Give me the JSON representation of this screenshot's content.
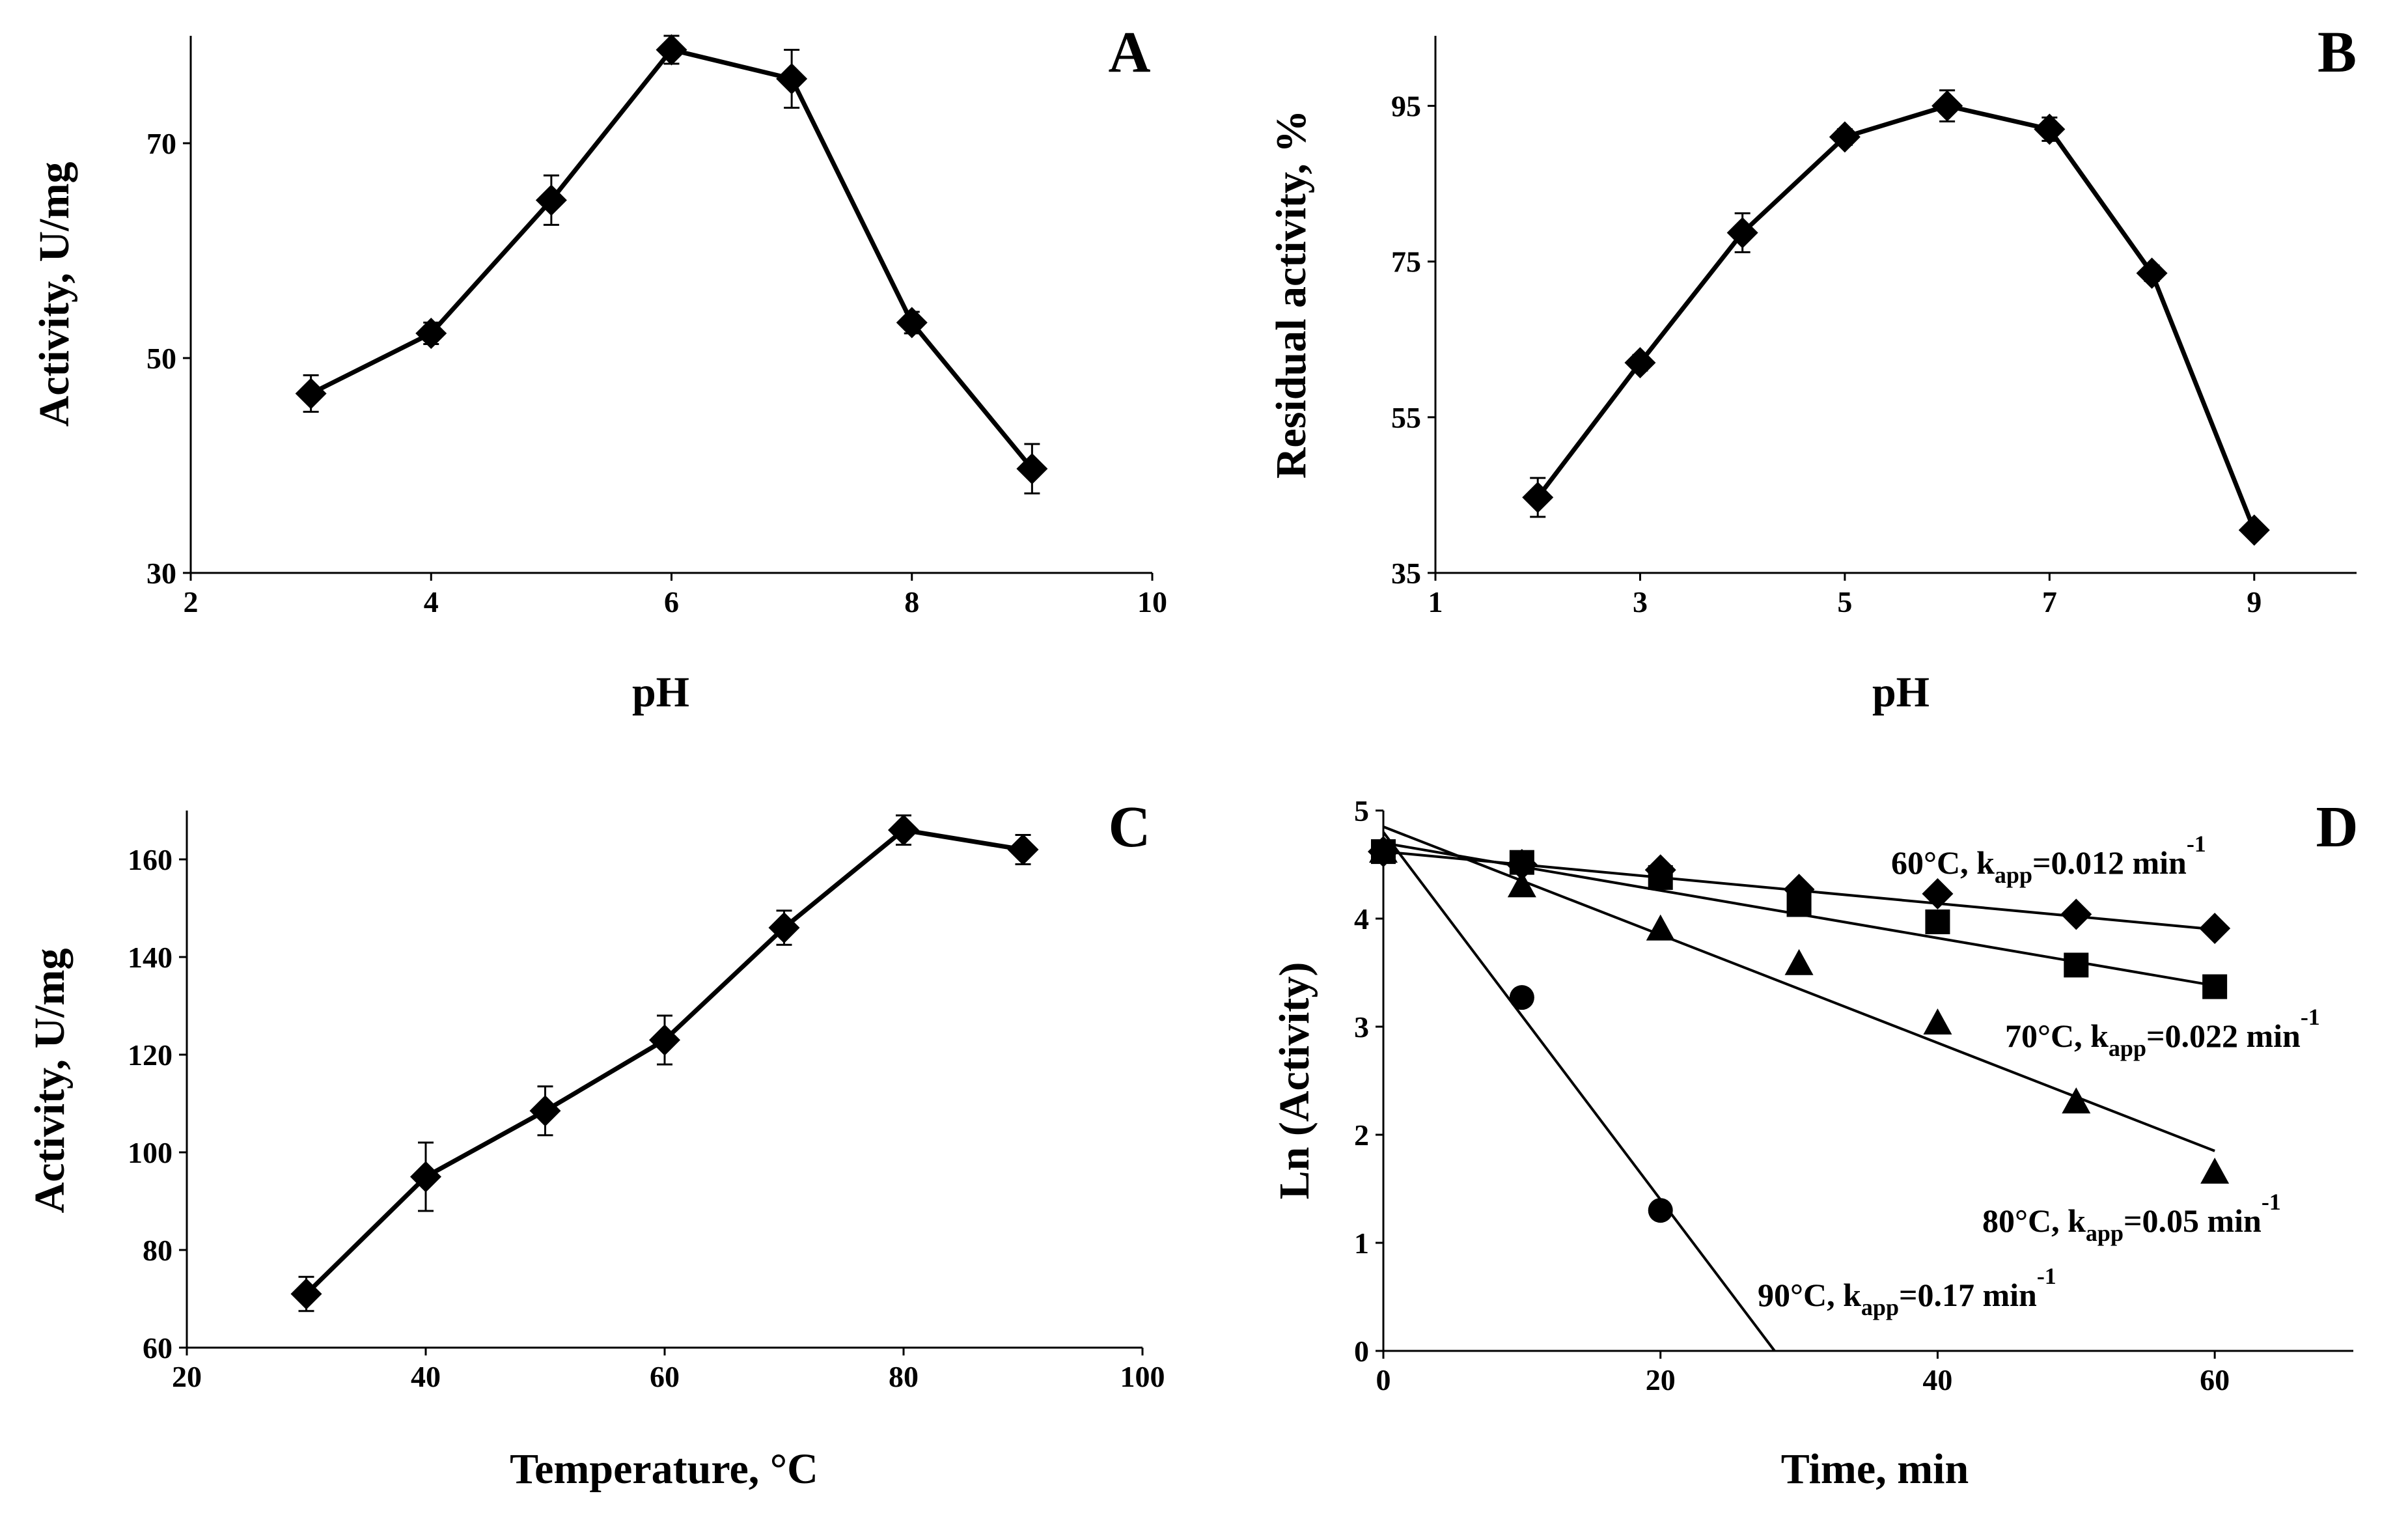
{
  "chart_data": [
    {
      "id": "A",
      "type": "line",
      "panel_label": "A",
      "xlabel": "pH",
      "ylabel": "Activity,  U/mg",
      "xlim": [
        2,
        10
      ],
      "ylim": [
        30,
        80
      ],
      "xticks": [
        2,
        4,
        6,
        8,
        10
      ],
      "yticks": [
        30,
        50,
        70
      ],
      "grid": false,
      "marker": "diamond",
      "series": [
        {
          "name": "Activity",
          "x": [
            3,
            4,
            5,
            6,
            7,
            8,
            9
          ],
          "y": [
            46.7,
            52.3,
            64.7,
            78.7,
            76.0,
            53.3,
            39.7
          ],
          "err": [
            1.7,
            1.0,
            2.3,
            1.3,
            2.7,
            1.0,
            2.3
          ]
        }
      ]
    },
    {
      "id": "B",
      "type": "line",
      "panel_label": "B",
      "xlabel": "pH",
      "ylabel": "Residual  activity,  %",
      "xlim": [
        1,
        10
      ],
      "ylim": [
        35,
        104
      ],
      "xticks": [
        1,
        3,
        5,
        7,
        9
      ],
      "yticks": [
        35,
        55,
        75,
        95
      ],
      "grid": false,
      "marker": "diamond",
      "series": [
        {
          "name": "Residual activity",
          "x": [
            2,
            3,
            4,
            5,
            6,
            7,
            8,
            9
          ],
          "y": [
            44.7,
            62.0,
            78.7,
            91.0,
            95.0,
            92.0,
            73.5,
            40.5
          ],
          "err": [
            2.5,
            1.0,
            2.5,
            1.0,
            2.0,
            1.5,
            1.0,
            0.8
          ]
        }
      ]
    },
    {
      "id": "C",
      "type": "line",
      "panel_label": "C",
      "xlabel": "Temperature,  °C",
      "ylabel": "Activity,  U/mg",
      "xlim": [
        20,
        100
      ],
      "ylim": [
        60,
        170
      ],
      "xticks": [
        20,
        40,
        60,
        80,
        100
      ],
      "yticks": [
        60,
        80,
        100,
        120,
        140,
        160
      ],
      "grid": false,
      "marker": "diamond",
      "series": [
        {
          "name": "Activity",
          "x": [
            30,
            40,
            50,
            60,
            70,
            80,
            90
          ],
          "y": [
            71,
            95,
            108.5,
            123,
            146,
            166,
            162
          ],
          "err": [
            3.5,
            7,
            5,
            5,
            3.5,
            3,
            3
          ]
        }
      ]
    },
    {
      "id": "D",
      "type": "scatter",
      "panel_label": "D",
      "xlabel": "Time,  min",
      "ylabel": "Ln (Activity)",
      "xlim": [
        0,
        70
      ],
      "ylim": [
        0,
        5
      ],
      "xticks": [
        0,
        20,
        40,
        60
      ],
      "yticks": [
        0,
        1,
        2,
        3,
        4,
        5
      ],
      "grid": false,
      "series": [
        {
          "name": "60°C",
          "marker": "diamond",
          "x": [
            0,
            10,
            20,
            30,
            40,
            50,
            60
          ],
          "y": [
            4.62,
            4.5,
            4.45,
            4.27,
            4.23,
            4.04,
            3.91
          ],
          "fit": {
            "slope": -0.012,
            "intercept": 4.62
          },
          "label": {
            "prefix": "60°C, k",
            "sub": "app",
            "mid": "=0.012 min",
            "sup": "-1"
          }
        },
        {
          "name": "70°C",
          "marker": "square",
          "x": [
            0,
            10,
            20,
            30,
            40,
            50,
            60
          ],
          "y": [
            4.62,
            4.52,
            4.38,
            4.13,
            3.97,
            3.57,
            3.37
          ],
          "fit": {
            "slope": -0.022,
            "intercept": 4.7
          },
          "label": {
            "prefix": "70°C, k",
            "sub": "app",
            "mid": "=0.022 min",
            "sup": "-1"
          }
        },
        {
          "name": "80°C",
          "marker": "triangle",
          "x": [
            0,
            10,
            20,
            30,
            40,
            50,
            60
          ],
          "y": [
            4.62,
            4.3,
            3.9,
            3.58,
            3.03,
            2.3,
            1.65
          ],
          "fit": {
            "slope": -0.05,
            "intercept": 4.85
          },
          "label": {
            "prefix": "80°C, k",
            "sub": "app",
            "mid": "=0.05 min",
            "sup": "-1"
          }
        },
        {
          "name": "90°C",
          "marker": "circle",
          "x": [
            0,
            10,
            20
          ],
          "y": [
            4.62,
            3.27,
            1.3
          ],
          "fit": {
            "slope": -0.17,
            "intercept": 4.8
          },
          "label": {
            "prefix": "90°C, k",
            "sub": "app",
            "mid": "=0.17 min",
            "sup": "-1"
          }
        }
      ]
    }
  ]
}
